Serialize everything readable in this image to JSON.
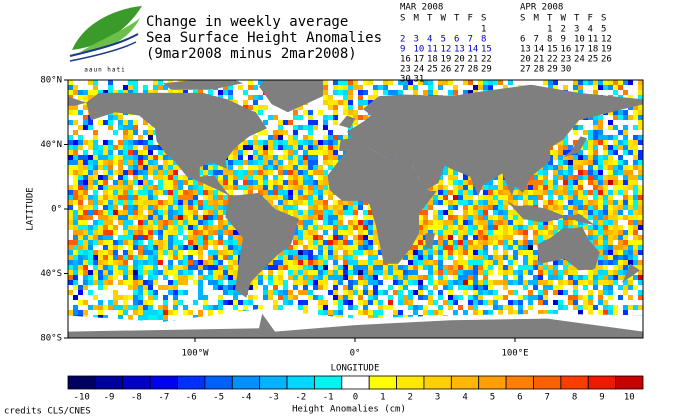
{
  "header": {
    "logo_text": "aaun hati",
    "title_lines": [
      "Change in weekly average",
      "Sea Surface Height Anomalies",
      "(9mar2008 minus 2mar2008)"
    ]
  },
  "calendars": [
    {
      "title": "MAR 2008",
      "weekdays": [
        "S",
        "M",
        "T",
        "W",
        "T",
        "F",
        "S"
      ],
      "weeks": [
        [
          null,
          null,
          null,
          null,
          null,
          null,
          "1"
        ],
        [
          "2",
          "3",
          "4",
          "5",
          "6",
          "7",
          "8"
        ],
        [
          "9",
          "10",
          "11",
          "12",
          "13",
          "14",
          "15"
        ],
        [
          "16",
          "17",
          "18",
          "19",
          "20",
          "21",
          "22"
        ],
        [
          "23",
          "24",
          "25",
          "26",
          "27",
          "28",
          "29"
        ],
        [
          "30",
          "31",
          null,
          null,
          null,
          null,
          null
        ]
      ],
      "highlighted_weeks": [
        1,
        2
      ],
      "highlight_color": "#0000cc"
    },
    {
      "title": "APR 2008",
      "weekdays": [
        "S",
        "M",
        "T",
        "W",
        "T",
        "F",
        "S"
      ],
      "weeks": [
        [
          null,
          null,
          "1",
          "2",
          "3",
          "4",
          "5"
        ],
        [
          "6",
          "7",
          "8",
          "9",
          "10",
          "11",
          "12"
        ],
        [
          "13",
          "14",
          "15",
          "16",
          "17",
          "18",
          "19"
        ],
        [
          "20",
          "21",
          "22",
          "23",
          "24",
          "25",
          "26"
        ],
        [
          "27",
          "28",
          "29",
          "30",
          null,
          null,
          null
        ]
      ],
      "highlighted_weeks": [],
      "highlight_color": "#0000cc"
    }
  ],
  "map": {
    "y_axis_label": "LATITUDE",
    "x_axis_label": "LONGITUDE",
    "lat_ticks": [
      "80°N",
      "40°N",
      "0°",
      "40°S",
      "80°S"
    ],
    "lon_ticks": [
      "100°W",
      "0°",
      "100°E"
    ],
    "land_color": "#7f7f7f"
  },
  "colorbar": {
    "labels": [
      "-10",
      "-9",
      "-8",
      "-7",
      "-6",
      "-5",
      "-4",
      "-3",
      "-2",
      "-1",
      "0",
      "1",
      "2",
      "3",
      "4",
      "5",
      "6",
      "7",
      "8",
      "9",
      "10"
    ],
    "colors": [
      "#000060",
      "#00009a",
      "#0000c8",
      "#0000f0",
      "#0030ff",
      "#0060ff",
      "#0090ff",
      "#00b4ff",
      "#00d8ff",
      "#00f4f0",
      "#ffffff",
      "#ffff00",
      "#ffe800",
      "#ffd000",
      "#ffb800",
      "#ffa000",
      "#ff8000",
      "#ff6000",
      "#ff3c00",
      "#f01800",
      "#c80000"
    ],
    "title": "Height Anomalies (cm)"
  },
  "footer": {
    "credits": "credits CLS/CNES"
  }
}
